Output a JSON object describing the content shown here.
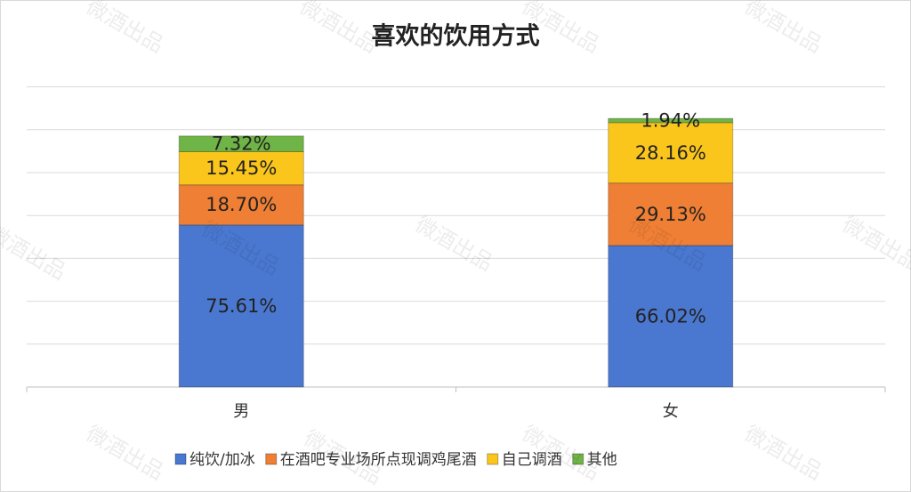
{
  "chart_data": {
    "type": "stacked_bar",
    "title": "喜欢的饮用方式",
    "watermark": "微酒出品",
    "categories": [
      "男",
      "女"
    ],
    "series": [
      {
        "name": "纯饮/加冰",
        "color": "#4a78d0",
        "values": [
          75.61,
          66.02
        ],
        "value_labels": [
          "75.61%",
          "66.02%"
        ]
      },
      {
        "name": "在酒吧专业场所点现调鸡尾酒",
        "color": "#ef7f35",
        "values": [
          18.7,
          29.13
        ],
        "value_labels": [
          "18.70%",
          "29.13%"
        ]
      },
      {
        "name": "自己调酒",
        "color": "#fbc61c",
        "values": [
          15.45,
          28.16
        ],
        "value_labels": [
          "15.45%",
          "28.16%"
        ]
      },
      {
        "name": "其他",
        "color": "#6fb446",
        "values": [
          7.32,
          1.94
        ],
        "value_labels": [
          "7.32%",
          "1.94%"
        ]
      }
    ],
    "ylim": [
      0,
      140
    ],
    "yticks": [
      0,
      20,
      40,
      60,
      80,
      100,
      120,
      140
    ],
    "grid": true,
    "legend": "bottom"
  }
}
